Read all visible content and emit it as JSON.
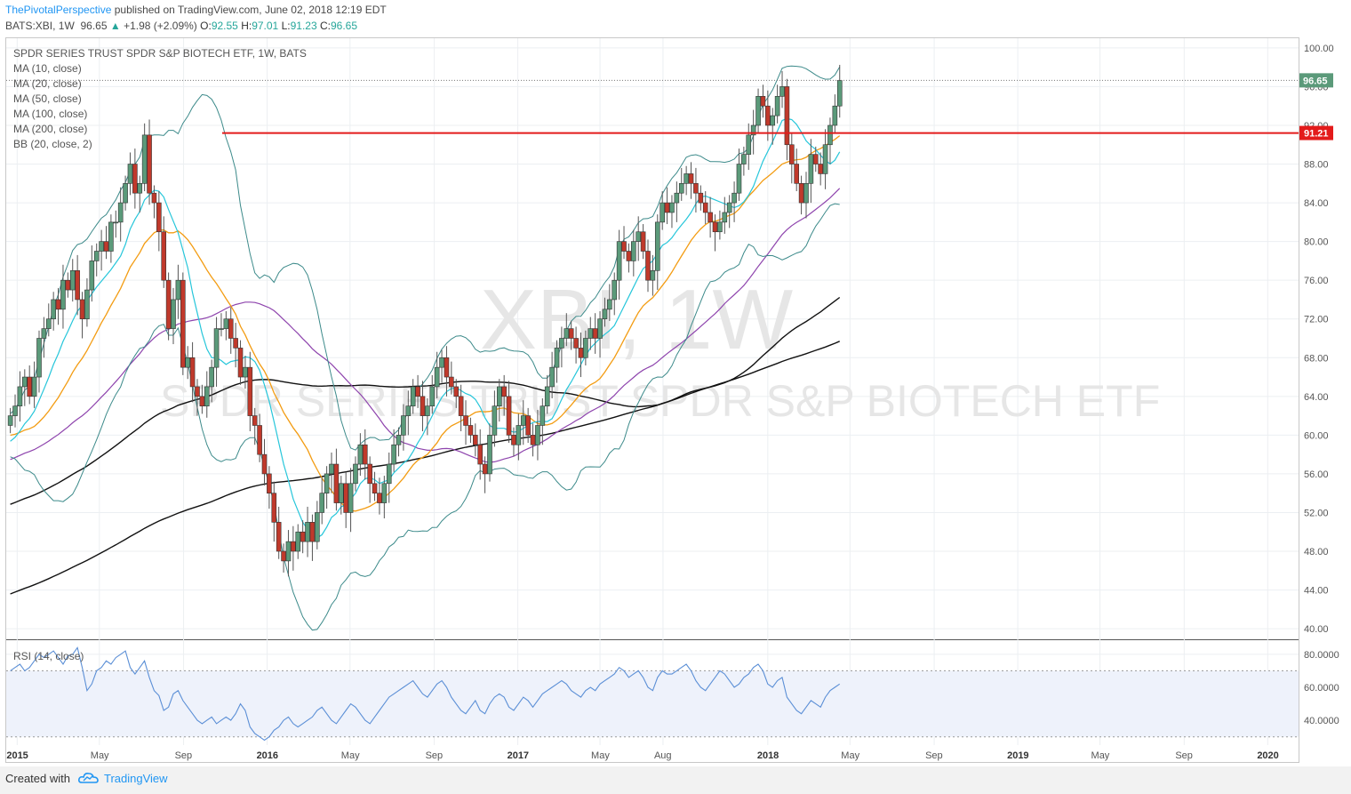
{
  "header": {
    "author": "ThePivotalPerspective",
    "published": "published on TradingView.com, June 02, 2018 12:19 EDT",
    "symbol_line": "BATS:XBI, 1W",
    "last": "96.65",
    "change_arrow": "▲",
    "change": "+1.98 (+2.09%)",
    "o_label": "O:",
    "o_value": "92.55",
    "h_label": "H:",
    "h_value": "97.01",
    "l_label": "L:",
    "l_value": "91.23",
    "c_label": "C:",
    "c_value": "96.65"
  },
  "legend": {
    "title": "SPDR SERIES TRUST SPDR S&P BIOTECH ETF, 1W, BATS",
    "ma10": "MA (10, close)",
    "ma20": "MA (20, close)",
    "ma50": "MA (50, close)",
    "ma100": "MA (100, close)",
    "ma200": "MA (200, close)",
    "bb": "BB (20, close, 2)",
    "rsi": "RSI (14, close)"
  },
  "watermark": {
    "symbol": "XBI, 1W",
    "name": "SPDR SERIES TRUST SPDR S&P BIOTECH ETF"
  },
  "footer": {
    "created_with": "Created with",
    "brand": "TradingView"
  },
  "colors": {
    "up": "#5b9a7a",
    "down": "#c0392b",
    "ma10": "#26c6da",
    "ma20": "#f39c12",
    "ma50": "#8e44ad",
    "ma100_200": "#111111",
    "bb": "#3c8a8a",
    "rsi": "#5b8fd6",
    "rsi_band": "#eef2fb",
    "resistance": "#e31b1b",
    "last_price_label": "#5b9a7a"
  },
  "chart_data": [
    {
      "type": "candlestick",
      "title": "SPDR SERIES TRUST SPDR S&P BIOTECH ETF, 1W, BATS",
      "ylim": [
        39,
        101
      ],
      "y_ticks": [
        "100.00",
        "96.00",
        "92.00",
        "88.00",
        "84.00",
        "80.00",
        "76.00",
        "72.00",
        "68.00",
        "64.00",
        "60.00",
        "56.00",
        "52.00",
        "48.00",
        "44.00",
        "40.00"
      ],
      "x_ticks": [
        "2015",
        "May",
        "Sep",
        "2016",
        "May",
        "Sep",
        "2017",
        "May",
        "Aug",
        "2018",
        "May",
        "Sep",
        "2019",
        "May",
        "Sep",
        "2020"
      ],
      "x_tick_dates": [
        "2015-01-01",
        "2015-05-01",
        "2015-09-01",
        "2016-01-01",
        "2016-05-01",
        "2016-09-01",
        "2017-01-01",
        "2017-05-01",
        "2017-08-01",
        "2018-01-01",
        "2018-05-01",
        "2018-09-01",
        "2019-01-01",
        "2019-05-01",
        "2019-09-01",
        "2020-01-01"
      ],
      "start_date": "2014-12-22",
      "period": "1W",
      "close": [
        62,
        63,
        65,
        66,
        64,
        66,
        70,
        71,
        72,
        74,
        73,
        76,
        75,
        77,
        74,
        72,
        75,
        78,
        79,
        80,
        79,
        82,
        82,
        84,
        86,
        88,
        85,
        86,
        91,
        85,
        84,
        81,
        76,
        71,
        74,
        76,
        67,
        68,
        65,
        64,
        63,
        65,
        67,
        71,
        71,
        72,
        70,
        69,
        66,
        67,
        62,
        61,
        58,
        56,
        54,
        51,
        48,
        47,
        49,
        48,
        50,
        49,
        51,
        49,
        52,
        54,
        56,
        57,
        53,
        55,
        52,
        55,
        57,
        59,
        57,
        55,
        54,
        53,
        55,
        57,
        59,
        60,
        62,
        63,
        65,
        64,
        62,
        63,
        65,
        67,
        68,
        66,
        65,
        64,
        62,
        61,
        60,
        59,
        57,
        56,
        60,
        63,
        65,
        64,
        60,
        59,
        61,
        62,
        60,
        59,
        61,
        63,
        65,
        67,
        69,
        70,
        71,
        70,
        69,
        68,
        70,
        71,
        70,
        72,
        73,
        74,
        76,
        80,
        79,
        78,
        80,
        81,
        79,
        76,
        77,
        82,
        84,
        83,
        84,
        85,
        86,
        87,
        86,
        85,
        84,
        83,
        82,
        81,
        82,
        83,
        84,
        85,
        88,
        89,
        91,
        92,
        95,
        94,
        92,
        93,
        95,
        96,
        90,
        88,
        86,
        84,
        86,
        89,
        88,
        87,
        90,
        92,
        94,
        96.65
      ],
      "resistance": 91.21,
      "last_price": 96.65,
      "series": [
        {
          "name": "MA (10, close)"
        },
        {
          "name": "MA (20, close)"
        },
        {
          "name": "MA (50, close)"
        },
        {
          "name": "MA (100, close)"
        },
        {
          "name": "MA (200, close)"
        },
        {
          "name": "BB (20, close, 2)"
        }
      ]
    },
    {
      "type": "line",
      "title": "RSI (14, close)",
      "ylim": [
        25,
        88
      ],
      "y_ticks": [
        "80.0000",
        "60.0000",
        "40.0000"
      ],
      "bands": [
        30,
        70
      ],
      "series": [
        {
          "name": "RSI (14, close)",
          "values": [
            70,
            72,
            74,
            70,
            72,
            76,
            80,
            78,
            80,
            82,
            78,
            74,
            79,
            80,
            84,
            72,
            58,
            62,
            70,
            72,
            76,
            74,
            78,
            80,
            82,
            72,
            68,
            72,
            76,
            66,
            58,
            55,
            46,
            48,
            56,
            58,
            52,
            48,
            44,
            40,
            38,
            40,
            42,
            38,
            40,
            42,
            40,
            44,
            50,
            46,
            36,
            32,
            30,
            28,
            30,
            34,
            36,
            40,
            42,
            38,
            36,
            38,
            40,
            42,
            46,
            48,
            44,
            40,
            38,
            42,
            46,
            50,
            48,
            44,
            40,
            38,
            42,
            46,
            50,
            54,
            56,
            58,
            60,
            62,
            64,
            60,
            56,
            54,
            58,
            62,
            64,
            60,
            54,
            50,
            46,
            44,
            48,
            52,
            46,
            44,
            50,
            54,
            56,
            54,
            48,
            46,
            50,
            54,
            52,
            48,
            52,
            56,
            58,
            60,
            62,
            64,
            62,
            58,
            56,
            54,
            58,
            60,
            58,
            62,
            64,
            66,
            68,
            72,
            70,
            66,
            68,
            70,
            66,
            60,
            58,
            66,
            70,
            68,
            68,
            70,
            72,
            74,
            70,
            64,
            60,
            58,
            62,
            66,
            70,
            68,
            64,
            60,
            62,
            66,
            68,
            72,
            74,
            70,
            62,
            60,
            64,
            66,
            54,
            50,
            46,
            44,
            48,
            52,
            50,
            48,
            54,
            58,
            60,
            62
          ]
        }
      ]
    }
  ]
}
